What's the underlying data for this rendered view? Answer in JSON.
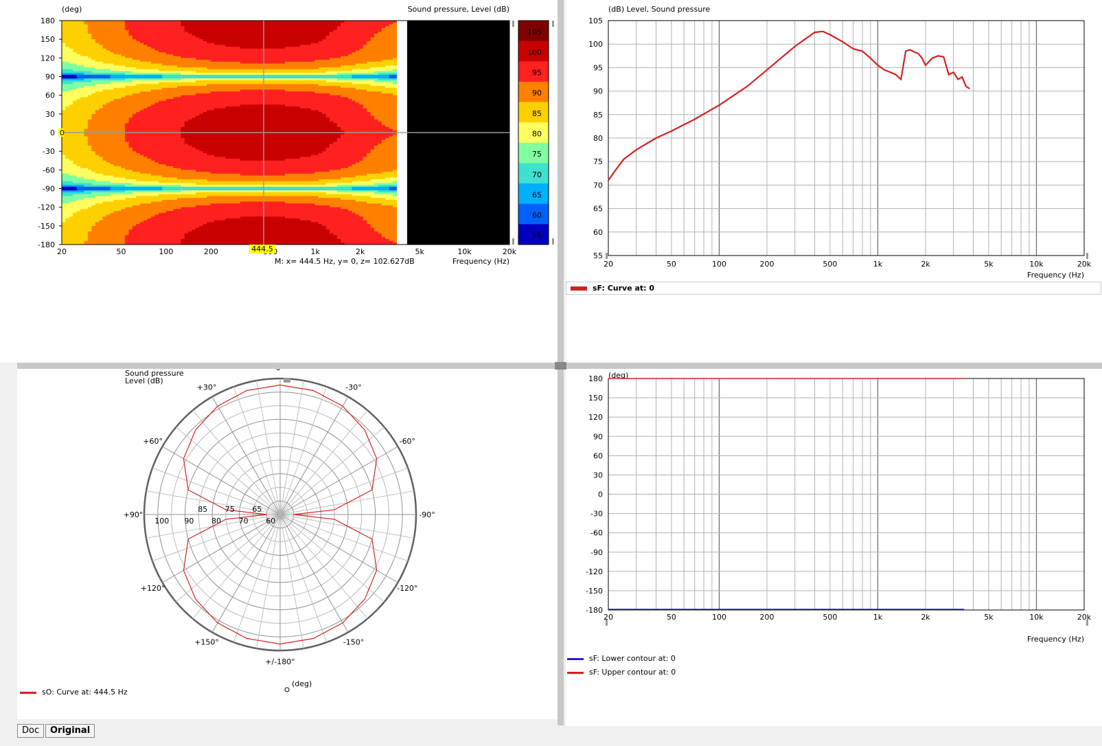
{
  "heatmap": {
    "y_axis_label": "(deg)",
    "z_title": "Sound pressure, Level  (dB)",
    "x_axis_label": "Frequency  (Hz)",
    "y_ticks": [
      "180",
      "150",
      "120",
      "90",
      "60",
      "30",
      "0",
      "-30",
      "-60",
      "-90",
      "-120",
      "-150",
      "-180"
    ],
    "x_ticks": [
      "20",
      "50",
      "100",
      "200",
      "500",
      "1k",
      "2k",
      "5k",
      "10k",
      "20k"
    ],
    "colorbar_ticks": [
      "105",
      "100",
      "95",
      "90",
      "85",
      "80",
      "75",
      "70",
      "65",
      "60",
      "55"
    ],
    "colorbar_colors": [
      "#800000",
      "#c80000",
      "#ff2020",
      "#ff8000",
      "#ffd000",
      "#ffff60",
      "#80ffa0",
      "#40e0d0",
      "#00b0ff",
      "#0060ff",
      "#0000c0",
      "#000000"
    ],
    "cursor_x_label": "444.5",
    "cursor_y_label": "0",
    "marker_readout": "M:  x= 444.5 Hz,  y= 0, z= 102.627dB"
  },
  "freq_response": {
    "title": "(dB)  Level, Sound pressure",
    "x_axis_label": "Frequency  (Hz)",
    "legend": "sF: Curve at: 0",
    "curve_color": "#d42020"
  },
  "polar": {
    "title_line1": "Sound pressure",
    "title_line2": "Level  (dB)",
    "unit_label": "(deg)",
    "angle_labels": [
      "0°",
      "-30°",
      "-60°",
      "-90°",
      "-120°",
      "-150°",
      "+/-180°",
      "+150°",
      "+120°",
      "+90°",
      "+60°",
      "+30°"
    ],
    "radial_labels_left": [
      "100",
      "90",
      "80",
      "70",
      "60"
    ],
    "radial_labels_right": [
      "85",
      "75",
      "65"
    ],
    "legend": "sO: Curve at: 444.5 Hz",
    "curve_color": "#d42020"
  },
  "phase": {
    "title": "(deg)",
    "x_axis_label": "Frequency  (Hz)",
    "legend_lower": "sF: Lower contour at: 0",
    "legend_upper": "sF: Upper contour at: 0",
    "lower_color": "#2020d0",
    "upper_color": "#d42020"
  },
  "chart_data": [
    {
      "type": "heatmap",
      "title": "Sound pressure, Level  (dB)",
      "xlabel": "Frequency  (Hz)",
      "ylabel": "(deg)",
      "x_scale": "log",
      "xlim": [
        20,
        20000
      ],
      "ylim": [
        -180,
        180
      ],
      "zlim": [
        55,
        105
      ],
      "data_freq_limit_hz": 3500,
      "marker": {
        "x": 444.5,
        "y": 0,
        "z": 102.627
      }
    },
    {
      "type": "line",
      "title": "(dB)  Level, Sound pressure",
      "xlabel": "Frequency  (Hz)",
      "x_scale": "log",
      "xlim": [
        20,
        20000
      ],
      "ylim": [
        55,
        105
      ],
      "y_ticks": [
        105,
        100,
        95,
        90,
        85,
        80,
        75,
        70,
        65,
        60,
        55
      ],
      "x_ticks": [
        "20",
        "50",
        "100",
        "200",
        "500",
        "1k",
        "2k",
        "5k",
        "10k",
        "20k"
      ],
      "grid": true,
      "series": [
        {
          "name": "sF: Curve at: 0",
          "x": [
            20,
            22,
            25,
            30,
            40,
            50,
            70,
            100,
            150,
            200,
            300,
            400,
            450,
            500,
            600,
            700,
            800,
            900,
            1000,
            1100,
            1200,
            1300,
            1400,
            1500,
            1600,
            1700,
            1800,
            1900,
            2000,
            2200,
            2400,
            2600,
            2800,
            3000,
            3200,
            3400,
            3600,
            3800
          ],
          "y": [
            71,
            73,
            75.5,
            77.5,
            80,
            81.5,
            84,
            87,
            91,
            94.5,
            99.5,
            102.5,
            102.7,
            102,
            100.5,
            99,
            98.5,
            97,
            95.5,
            94.5,
            94,
            93.5,
            92.5,
            98.5,
            98.8,
            98.3,
            98,
            97,
            95.5,
            97,
            97.5,
            97.3,
            93.5,
            94,
            92.5,
            93,
            91,
            90.5
          ]
        }
      ]
    },
    {
      "type": "line",
      "title": "(deg)",
      "xlabel": "Frequency  (Hz)",
      "x_scale": "log",
      "xlim": [
        20,
        20000
      ],
      "ylim": [
        -180,
        180
      ],
      "y_ticks": [
        180,
        150,
        120,
        90,
        60,
        30,
        0,
        -30,
        -60,
        -90,
        -120,
        -150,
        -180
      ],
      "x_ticks": [
        "20",
        "50",
        "100",
        "200",
        "500",
        "1k",
        "2k",
        "5k",
        "10k",
        "20k"
      ],
      "grid": true,
      "series": [
        {
          "name": "sF: Upper contour at: 0",
          "x": [
            20,
            3500
          ],
          "y": [
            180,
            180
          ]
        },
        {
          "name": "sF: Lower contour at: 0",
          "x": [
            20,
            3500
          ],
          "y": [
            -180,
            -180
          ]
        }
      ]
    },
    {
      "type": "line",
      "title": "Sound pressure Level  (dB)",
      "polar": true,
      "r_range": [
        55,
        105
      ],
      "angle_labels": [
        "0°",
        "-30°",
        "-60°",
        "-90°",
        "-120°",
        "-150°",
        "+/-180°",
        "+150°",
        "+120°",
        "+90°",
        "+60°",
        "+30°"
      ],
      "series": [
        {
          "name": "sO: Curve at: 444.5 Hz",
          "angle_deg": [
            0,
            15,
            30,
            45,
            60,
            75,
            85,
            90,
            95,
            105,
            120,
            135,
            150,
            165,
            180,
            195,
            210,
            225,
            240,
            255,
            265,
            270,
            275,
            285,
            300,
            315,
            330,
            345,
            360
          ],
          "r_db": [
            102.6,
            102.2,
            101,
            99,
            96,
            90,
            75,
            60,
            75,
            90,
            96,
            99,
            101,
            102.2,
            102.6,
            102.2,
            101,
            99,
            96,
            90,
            75,
            60,
            75,
            90,
            96,
            99,
            101,
            102.2,
            102.6
          ]
        }
      ]
    }
  ],
  "buttons": {
    "doc": "Doc",
    "original": "Original"
  }
}
